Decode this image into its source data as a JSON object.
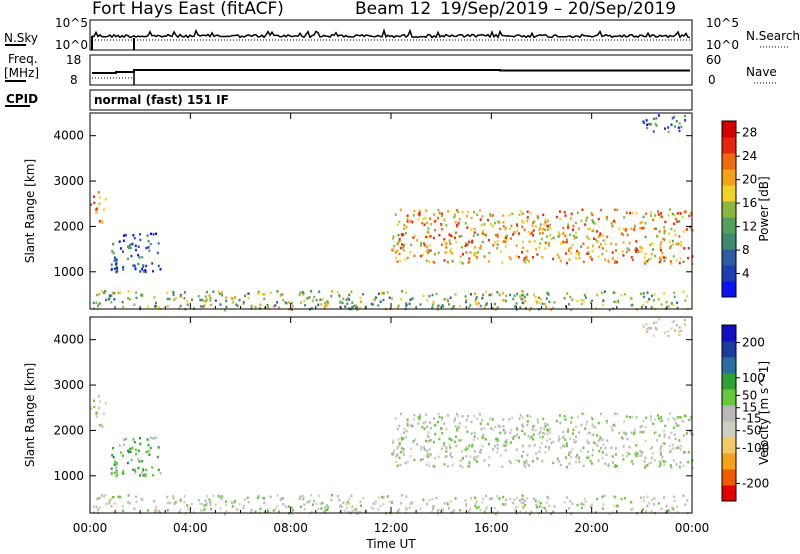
{
  "header": {
    "title": "Fort Hays East (fitACF)",
    "beam": "Beam 12",
    "dates": "19/Sep/2019 – 20/Sep/2019"
  },
  "strips": {
    "nsky_label": "N.Sky",
    "nsearch_label": "N.Search",
    "freq_label_1": "Freq.",
    "freq_label_2": "[MHz]",
    "nave_label": "Nave",
    "cpid_label": "CPID",
    "cpid_value": "normal (fast) 151 IF",
    "noise_ticks_left": [
      "10^5",
      "10^0"
    ],
    "noise_ticks_right": [
      "10^5",
      "10^0"
    ],
    "freq_ticks": [
      "18",
      "8"
    ],
    "nave_ticks": [
      "60",
      "0"
    ]
  },
  "colors": {
    "power": [
      "#0a14f0",
      "#1f3fb0",
      "#2d5ca0",
      "#3f8a6e",
      "#54a05a",
      "#8ab640",
      "#f0d02a",
      "#f6a11a",
      "#ee6a10",
      "#e52612",
      "#d40000"
    ],
    "velocity": [
      "#e30000",
      "#f05a00",
      "#f6a11a",
      "#f2c96a",
      "#cfcfc0",
      "#b9b9b9",
      "#66c83a",
      "#2fa032",
      "#2c6ea0",
      "#1b3c9c",
      "#1010c0"
    ]
  },
  "chart_data": [
    {
      "type": "heatmap",
      "title": "",
      "xlabel": "Time UT",
      "ylabel": "Slant Range [km]",
      "xlim": [
        "00:00",
        "00:00"
      ],
      "ylim": [
        180,
        4500
      ],
      "x_ticks": [
        "00:00",
        "04:00",
        "08:00",
        "12:00",
        "16:00",
        "20:00",
        "00:00"
      ],
      "y_ticks": [
        1000,
        2000,
        3000,
        4000
      ],
      "colorbar": {
        "label": "Power [dB]",
        "ticks": [
          4,
          8,
          12,
          16,
          20,
          24,
          28
        ],
        "range": [
          0,
          30
        ]
      },
      "features": [
        {
          "name": "near-range ground band",
          "t_start": 0.1,
          "t_end": 23.8,
          "range_km": [
            180,
            600
          ],
          "value": 14
        },
        {
          "name": "early evening echoes",
          "t_start": 0.0,
          "t_end": 0.6,
          "range_km": [
            2100,
            2800
          ],
          "value": 20
        },
        {
          "name": "early decaying echoes",
          "t_start": 0.8,
          "t_end": 2.8,
          "range_km": [
            1000,
            1900
          ],
          "value": 6
        },
        {
          "name": "daytime ionospheric scatter",
          "t_start": 12.0,
          "t_end": 24.0,
          "range_km": [
            1200,
            2400
          ],
          "value": 20
        },
        {
          "name": "late far-range echoes",
          "t_start": 22.0,
          "t_end": 23.7,
          "range_km": [
            4100,
            4500
          ],
          "value": 8
        }
      ]
    },
    {
      "type": "heatmap",
      "title": "",
      "xlabel": "Time UT",
      "ylabel": "Slant Range [km]",
      "xlim": [
        "00:00",
        "00:00"
      ],
      "ylim": [
        180,
        4500
      ],
      "x_ticks": [
        "00:00",
        "04:00",
        "08:00",
        "12:00",
        "16:00",
        "20:00",
        "00:00"
      ],
      "y_ticks": [
        1000,
        2000,
        3000,
        4000
      ],
      "colorbar": {
        "label": "Velocity [m s^-1]",
        "ticks": [
          -200,
          -100,
          -50,
          -15,
          15,
          50,
          100,
          200
        ],
        "range": [
          -250,
          250
        ]
      },
      "features": [
        {
          "name": "near-range ground band",
          "t_start": 0.1,
          "t_end": 23.8,
          "range_km": [
            180,
            600
          ],
          "value": -10
        },
        {
          "name": "early evening echoes",
          "t_start": 0.0,
          "t_end": 0.6,
          "range_km": [
            2100,
            2800
          ],
          "value": -20
        },
        {
          "name": "early decaying echoes",
          "t_start": 0.8,
          "t_end": 2.8,
          "range_km": [
            1000,
            1900
          ],
          "value": 60
        },
        {
          "name": "daytime ionospheric scatter",
          "t_start": 12.0,
          "t_end": 24.0,
          "range_km": [
            1200,
            2400
          ],
          "value": 0
        },
        {
          "name": "late far-range echoes",
          "t_start": 22.0,
          "t_end": 23.7,
          "range_km": [
            4100,
            4500
          ],
          "value": -40
        }
      ]
    }
  ]
}
